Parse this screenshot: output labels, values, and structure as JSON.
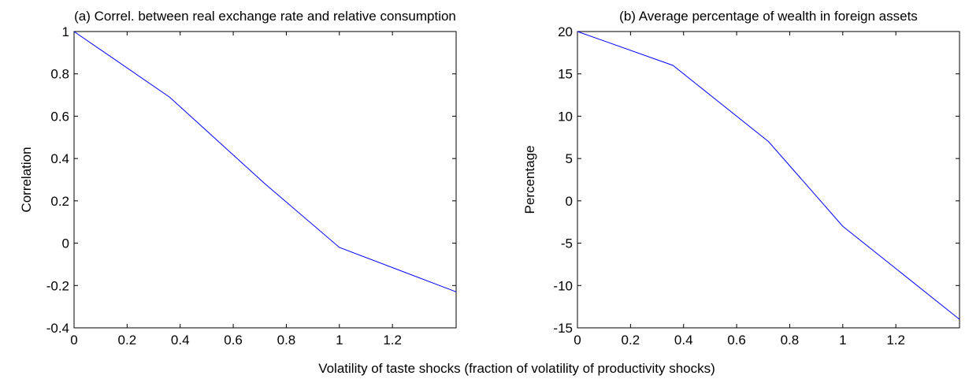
{
  "chart_data": [
    {
      "type": "line",
      "title": "(a) Correl. between real exchange rate and relative consumption",
      "ylabel": "Correlation",
      "x": [
        0,
        0.36,
        0.72,
        1.0,
        1.44
      ],
      "series": [
        {
          "color": "#0000ff",
          "values": [
            1,
            0.69,
            0.28,
            -0.02,
            -0.23
          ]
        }
      ],
      "xlim": [
        0,
        1.44
      ],
      "xticks": [
        0,
        0.2,
        0.4,
        0.6,
        0.8,
        1,
        1.2
      ],
      "ylim": [
        -0.4,
        1
      ],
      "yticks": [
        -0.4,
        -0.2,
        0,
        0.2,
        0.4,
        0.6,
        0.8,
        1
      ]
    },
    {
      "type": "line",
      "title": "(b) Average percentage of wealth in foreign assets",
      "ylabel": "Percentage",
      "x": [
        0,
        0.36,
        0.72,
        1.0,
        1.44
      ],
      "series": [
        {
          "color": "#0000ff",
          "values": [
            20,
            16,
            7,
            -3,
            -14
          ]
        }
      ],
      "xlim": [
        0,
        1.44
      ],
      "xticks": [
        0,
        0.2,
        0.4,
        0.6,
        0.8,
        1,
        1.2
      ],
      "ylim": [
        -15,
        20
      ],
      "yticks": [
        -15,
        -10,
        -5,
        0,
        5,
        10,
        15,
        20
      ]
    }
  ],
  "xlabel": "Volatility of taste shocks (fraction of volatility of productivity shocks)"
}
